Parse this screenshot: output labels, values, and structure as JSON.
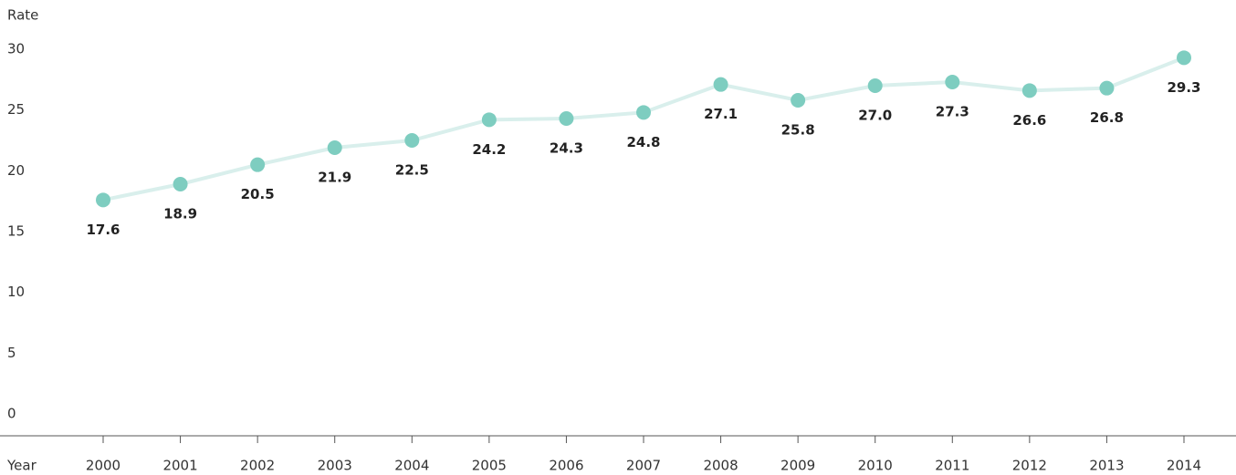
{
  "chart_data": {
    "type": "line",
    "y_label": "Rate",
    "x_label": "Year",
    "categories": [
      "2000",
      "2001",
      "2002",
      "2003",
      "2004",
      "2005",
      "2006",
      "2007",
      "2008",
      "2009",
      "2010",
      "2011",
      "2012",
      "2013",
      "2014"
    ],
    "series": [
      {
        "color": "#7ecdc0",
        "line_color": "#d9efec",
        "values": [
          17.6,
          18.9,
          20.5,
          21.9,
          22.5,
          24.2,
          24.3,
          24.8,
          27.1,
          25.8,
          27.0,
          27.3,
          26.6,
          26.8,
          29.3
        ],
        "value_labels": [
          "17.6",
          "18.9",
          "20.5",
          "21.9",
          "22.5",
          "24.2",
          "24.3",
          "24.8",
          "27.1",
          "25.8",
          "27.0",
          "27.3",
          "26.6",
          "26.8",
          "29.3"
        ]
      }
    ],
    "ylim": [
      -1.8,
      30
    ],
    "yticks": [
      0,
      5,
      10,
      15,
      20,
      25,
      30
    ],
    "grid": false
  }
}
